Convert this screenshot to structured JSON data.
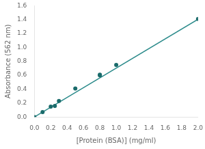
{
  "chart_data": {
    "type": "scatter",
    "xlabel": "[Protein (BSA)] (mg/ml)",
    "ylabel": "Absorbance (562 nm)",
    "series": [
      {
        "type": "line",
        "color": "#2a8a8a",
        "x": [
          0.0,
          2.0
        ],
        "values": [
          0.0,
          1.406
        ]
      },
      {
        "type": "scatter",
        "color": "#1a6b6b",
        "x": [
          0.0,
          0.1,
          0.2,
          0.25,
          0.3,
          0.5,
          0.8,
          0.8,
          1.0,
          2.0
        ],
        "values": [
          0.0,
          0.07,
          0.15,
          0.16,
          0.23,
          0.41,
          0.6,
          0.61,
          0.75,
          1.41
        ]
      }
    ],
    "xlim": [
      0,
      2.0
    ],
    "ylim": [
      0,
      1.6
    ],
    "xticks": [
      {
        "value": 0,
        "label": "0.0"
      },
      {
        "value": 0.2,
        "label": "0.2"
      },
      {
        "value": 0.4,
        "label": "0.4"
      },
      {
        "value": 0.6,
        "label": "0.6"
      },
      {
        "value": 0.8,
        "label": "0.8"
      },
      {
        "value": 1.0,
        "label": "1.0"
      },
      {
        "value": 1.2,
        "label": "1.2"
      },
      {
        "value": 1.4,
        "label": "1.4"
      },
      {
        "value": 1.6,
        "label": "1.6"
      },
      {
        "value": 1.8,
        "label": "1.8"
      },
      {
        "value": 2.0,
        "label": "2.0"
      }
    ],
    "yticks": [
      {
        "value": 0,
        "label": "0.0"
      },
      {
        "value": 0.2,
        "label": "0.2"
      },
      {
        "value": 0.4,
        "label": "0.4"
      },
      {
        "value": 0.6,
        "label": "0.6"
      },
      {
        "value": 0.8,
        "label": "0.8"
      },
      {
        "value": 1.0,
        "label": "1.0"
      },
      {
        "value": 1.2,
        "label": "1.2"
      },
      {
        "value": 1.4,
        "label": "1.4"
      },
      {
        "value": 1.6,
        "label": "1.6"
      }
    ],
    "grid": false
  }
}
